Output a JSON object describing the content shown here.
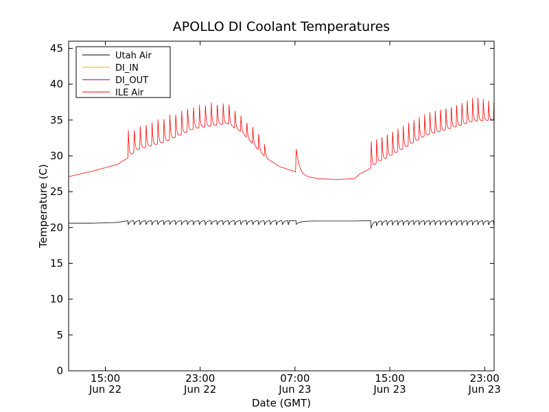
{
  "chart_data": {
    "type": "line",
    "title": "APOLLO DI Coolant Temperatures",
    "xlabel": "Date (GMT)",
    "ylabel": "Temperature (C)",
    "x_unit": "hours since Jun 22 00:00 GMT",
    "xlim": [
      11.9,
      47.8
    ],
    "ylim": [
      0,
      46
    ],
    "y_ticks": [
      0,
      5,
      10,
      15,
      20,
      25,
      30,
      35,
      40,
      45
    ],
    "x_ticks": [
      {
        "value": 15,
        "line1": "15:00",
        "line2": "Jun 22"
      },
      {
        "value": 23,
        "line1": "23:00",
        "line2": "Jun 22"
      },
      {
        "value": 31,
        "line1": "07:00",
        "line2": "Jun 23"
      },
      {
        "value": 39,
        "line1": "15:00",
        "line2": "Jun 23"
      },
      {
        "value": 47,
        "line1": "23:00",
        "line2": "Jun 23"
      }
    ],
    "legend_position": "top-left",
    "series": [
      {
        "name": "Utah Air",
        "color": "#000000",
        "baseline": [
          [
            11.9,
            20.6
          ],
          [
            14.0,
            20.6
          ],
          [
            16.0,
            20.7
          ],
          [
            16.9,
            20.95
          ],
          [
            30.5,
            20.95
          ],
          [
            31.5,
            20.9
          ],
          [
            36.0,
            20.9
          ],
          [
            37.4,
            20.95
          ],
          [
            47.8,
            20.95
          ]
        ],
        "cycles": [
          {
            "start": 16.9,
            "end": 30.5,
            "period": 0.5,
            "dip": 0.6
          },
          {
            "start": 37.4,
            "end": 47.8,
            "period": 0.45,
            "dip": 0.65
          }
        ],
        "events": [
          {
            "at": 31.1,
            "dip": 0.5
          },
          {
            "at": 37.4,
            "dip": 0.5
          }
        ]
      },
      {
        "name": "DI_IN",
        "color": "#ffa500",
        "baseline": [],
        "cycles": [],
        "events": []
      },
      {
        "name": "DI_OUT",
        "color": "#800080",
        "baseline": [],
        "cycles": [],
        "events": []
      },
      {
        "name": "ILE Air",
        "color": "#ff0000",
        "baseline": [
          [
            11.9,
            27.1
          ],
          [
            14.0,
            27.9
          ],
          [
            16.0,
            28.8
          ],
          [
            16.9,
            29.7
          ],
          [
            17.6,
            30.8
          ],
          [
            20.0,
            31.9
          ],
          [
            22.5,
            33.8
          ],
          [
            25.3,
            34.5
          ],
          [
            26.5,
            33.3
          ],
          [
            28.5,
            29.8
          ],
          [
            29.7,
            28.5
          ],
          [
            31.0,
            27.8
          ],
          [
            31.6,
            27.2
          ],
          [
            33.0,
            26.8
          ],
          [
            34.5,
            26.7
          ],
          [
            36.0,
            26.8
          ],
          [
            36.5,
            27.5
          ],
          [
            37.3,
            28.2
          ],
          [
            38.0,
            29.1
          ],
          [
            39.5,
            30.4
          ],
          [
            42.0,
            32.8
          ],
          [
            44.5,
            34.0
          ],
          [
            46.0,
            34.8
          ],
          [
            47.8,
            35.0
          ]
        ],
        "cycles": [
          {
            "start": 16.9,
            "end": 28.7,
            "period": 0.5,
            "top_points": [
              [
                16.9,
                33.6
              ],
              [
                18.0,
                34.3
              ],
              [
                20.0,
                35.5
              ],
              [
                22.0,
                36.8
              ],
              [
                24.0,
                37.5
              ],
              [
                25.4,
                37.4
              ],
              [
                26.5,
                35.5
              ],
              [
                28.0,
                33.2
              ],
              [
                28.7,
                30.8
              ]
            ]
          },
          {
            "start": 37.4,
            "end": 47.8,
            "period": 0.45,
            "top_points": [
              [
                37.4,
                32.2
              ],
              [
                39.0,
                33.6
              ],
              [
                41.0,
                35.1
              ],
              [
                43.0,
                36.6
              ],
              [
                45.0,
                37.6
              ],
              [
                46.2,
                38.4
              ],
              [
                47.8,
                37.4
              ]
            ]
          }
        ],
        "events": [
          {
            "at": 31.1,
            "peak": 31.0
          }
        ]
      }
    ]
  }
}
